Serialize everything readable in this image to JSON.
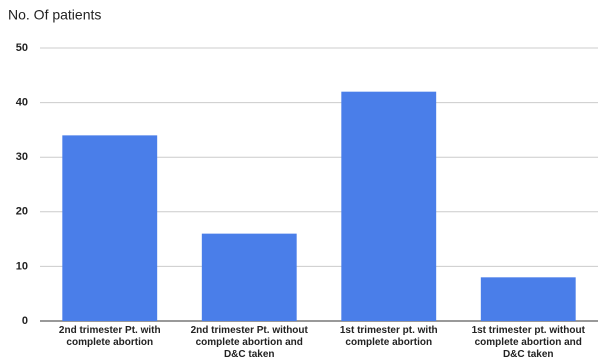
{
  "chart_data": {
    "type": "bar",
    "title": "No. Of patients",
    "categories": [
      "2nd trimester Pt. with complete abortion",
      "2nd trimester Pt. without complete abortion and D&C taken",
      "1st trimester pt. with complete abortion",
      "1st trimester pt. without complete abortion and D&C taken"
    ],
    "values": [
      34,
      16,
      42,
      8
    ],
    "color": "#4a7ee9",
    "ylim": [
      0,
      50
    ],
    "yticks": [
      0,
      10,
      20,
      30,
      40,
      50
    ],
    "grid": true
  }
}
